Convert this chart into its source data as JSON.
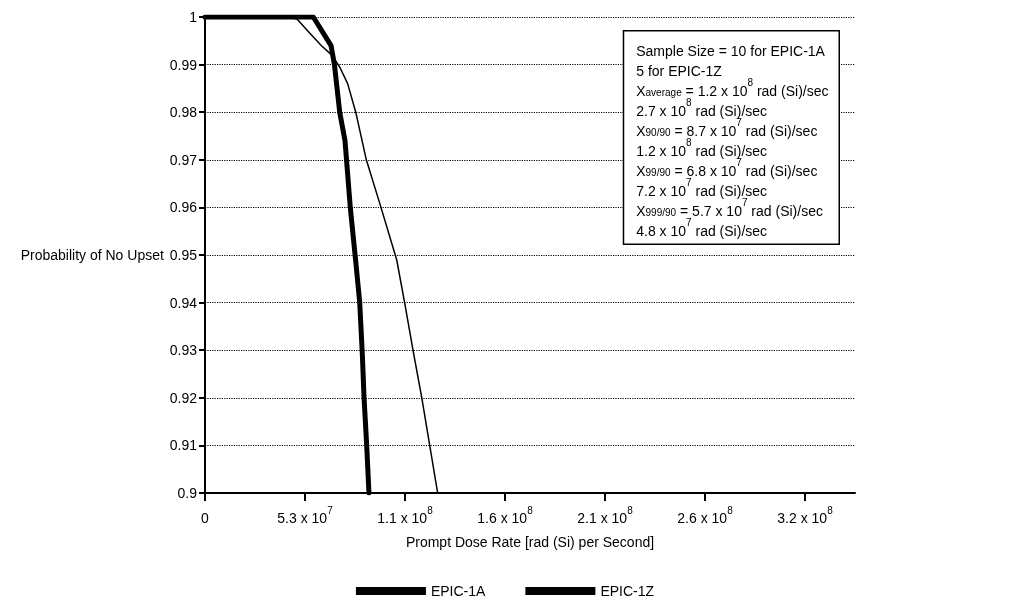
{
  "chart_data": {
    "type": "line",
    "xlabel": "Prompt Dose Rate [rad (Si) per Second]",
    "ylabel": "Probability of No Upset",
    "xlim": [
      0,
      344500000
    ],
    "ylim": [
      0.9,
      1
    ],
    "xticks": [
      {
        "value": 0,
        "label": "0"
      },
      {
        "value": 53000000,
        "label": "5.3 x 10$^{7}$"
      },
      {
        "value": 106000000,
        "label": "1.1 x 10$^{8}$"
      },
      {
        "value": 159000000,
        "label": "1.6 x 10$^{8}$"
      },
      {
        "value": 212000000,
        "label": "2.1 x 10$^{8}$"
      },
      {
        "value": 265000000,
        "label": "2.6 x 10$^{8}$"
      },
      {
        "value": 318000000,
        "label": "3.2 x 10$^{8}$"
      }
    ],
    "yticks": [
      0.9,
      0.91,
      0.92,
      0.93,
      0.94,
      0.95,
      0.96,
      0.97,
      0.98,
      0.99,
      1
    ],
    "grid": "y",
    "legend": "bottom",
    "marker": "none",
    "line_style": "solid",
    "series": [
      {
        "name": "EPIC-1A",
        "color": "#000000",
        "x": [
          0,
          57400000,
          66800000,
          68600000,
          71400000,
          74200000,
          77000000,
          79800000,
          82000000,
          83400000,
          84300000,
          85700000,
          86900000
        ],
        "values": [
          1,
          1,
          0.994,
          0.99,
          0.98,
          0.974,
          0.96,
          0.949,
          0.94,
          0.929,
          0.92,
          0.91,
          0.9
        ]
      },
      {
        "name": "EPIC-1Z",
        "color": "#000000",
        "x": [
          0,
          44800000,
          49000000,
          54600000,
          61600000,
          67200000,
          71400000,
          75600000,
          79900000,
          85500000,
          92500000,
          101600000,
          105800000,
          110700000,
          114900000,
          119100000,
          123300000
        ],
        "values": [
          1,
          1,
          0.9995,
          0.997,
          0.994,
          0.992,
          0.9895,
          0.986,
          0.98,
          0.97,
          0.961,
          0.949,
          0.94,
          0.929,
          0.92,
          0.91,
          0.9
        ]
      }
    ],
    "annotations": [
      "Sample Size = 10 for EPIC-1A",
      "5 for EPIC-1Z",
      "X$_{average}$ = 1.2 x 10$^{8}$ rad (Si)/sec",
      "2.7 x 10$^{8}$ rad (Si)/sec",
      "X$_{90/90}$ = 8.7 x 10$^{7}$ rad (Si)/sec",
      "1.2 x 10$^{8}$ rad (Si)/sec",
      "X$_{99/90}$ = 6.8 x 10$^{7}$ rad (Si)/sec",
      "7.2 x 10$^{7}$ rad (Si)/sec",
      "X$_{999/90}$ = 5.7 x 10$^{7}$ rad (Si)/sec",
      "4.8 x 10$^{7}$ rad (Si)/sec"
    ]
  }
}
